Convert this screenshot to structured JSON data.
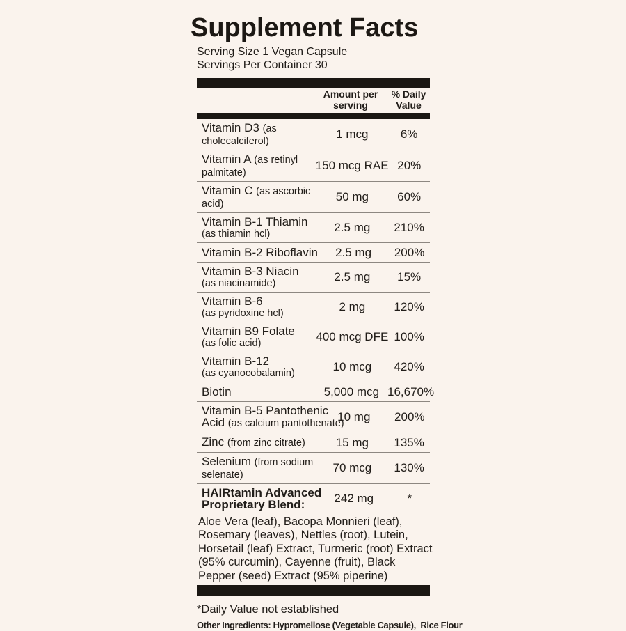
{
  "label": {
    "title": "Supplement Facts",
    "serving_size": "Serving Size 1 Vegan Capsule",
    "servings_per_container": "Servings Per Container 30",
    "header": {
      "amount": "Amount per serving",
      "daily_value": "% Daily Value"
    },
    "rows": [
      {
        "lines": [
          [
            {
              "t": "Vitamin D3 "
            },
            {
              "t": "(as",
              "sm": true
            }
          ],
          [
            {
              "t": "cholecalciferol)",
              "sm": true
            }
          ]
        ],
        "amount": "1 mcg",
        "dv": "6%"
      },
      {
        "lines": [
          [
            {
              "t": "Vitamin A "
            },
            {
              "t": "(as retinyl",
              "sm": true
            }
          ],
          [
            {
              "t": "palmitate)",
              "sm": true
            }
          ]
        ],
        "amount": "150 mcg RAE",
        "dv": "20%"
      },
      {
        "lines": [
          [
            {
              "t": "Vitamin C "
            },
            {
              "t": "(as ascorbic",
              "sm": true
            }
          ],
          [
            {
              "t": "acid)",
              "sm": true
            }
          ]
        ],
        "amount": "50 mg",
        "dv": "60%"
      },
      {
        "lines": [
          [
            {
              "t": "Vitamin B-1 Thiamin"
            }
          ],
          [
            {
              "t": "(as thiamin hcl)",
              "sm": true
            }
          ]
        ],
        "amount": "2.5 mg",
        "dv": "210%"
      },
      {
        "lines": [
          [
            {
              "t": "Vitamin B-2 Riboflavin"
            }
          ]
        ],
        "amount": "2.5 mg",
        "dv": "200%"
      },
      {
        "lines": [
          [
            {
              "t": "Vitamin B-3 Niacin"
            }
          ],
          [
            {
              "t": "(as niacinamide)",
              "sm": true
            }
          ]
        ],
        "amount": "2.5 mg",
        "dv": "15%"
      },
      {
        "lines": [
          [
            {
              "t": "Vitamin B-6"
            }
          ],
          [
            {
              "t": "(as pyridoxine hcl)",
              "sm": true
            }
          ]
        ],
        "amount": "2 mg",
        "dv": "120%"
      },
      {
        "lines": [
          [
            {
              "t": "Vitamin B9 Folate"
            }
          ],
          [
            {
              "t": "(as folic acid)",
              "sm": true
            }
          ]
        ],
        "amount": "400 mcg DFE",
        "dv": "100%"
      },
      {
        "lines": [
          [
            {
              "t": "Vitamin B-12"
            }
          ],
          [
            {
              "t": "(as cyanocobalamin)",
              "sm": true
            }
          ]
        ],
        "amount": "10 mcg",
        "dv": "420%"
      },
      {
        "lines": [
          [
            {
              "t": "Biotin"
            }
          ]
        ],
        "amount": "5,000 mcg",
        "dv": "16,670%"
      },
      {
        "lines": [
          [
            {
              "t": "Vitamin B-5 Pantothenic"
            }
          ],
          [
            {
              "t": "Acid "
            },
            {
              "t": "(as calcium pantothenate)",
              "sm": true
            }
          ]
        ],
        "amount": "10 mg",
        "dv": "200%"
      },
      {
        "lines": [
          [
            {
              "t": "Zinc "
            },
            {
              "t": "(from zinc citrate)",
              "sm": true
            }
          ]
        ],
        "amount": "15 mg",
        "dv": "135%"
      },
      {
        "lines": [
          [
            {
              "t": "Selenium "
            },
            {
              "t": "(from sodium",
              "sm": true
            }
          ],
          [
            {
              "t": "selenate)",
              "sm": true
            }
          ]
        ],
        "amount": "70 mcg",
        "dv": "130%"
      },
      {
        "lines": [
          [
            {
              "t": "HAIRtamin Advanced"
            }
          ],
          [
            {
              "t": "Proprietary Blend:"
            }
          ]
        ],
        "amount": "242 mg",
        "dv": "*",
        "bold": true,
        "no_separator": true
      }
    ],
    "blend_description_lines": [
      "Aloe Vera (leaf), Bacopa Monnieri (leaf),",
      "Rosemary (leaves), Nettles (root), Lutein,",
      "Horsetail (leaf) Extract, Turmeric (root) Extract",
      "(95% curcumin), Cayenne (fruit), Black",
      "Pepper (seed) Extract (95% piperine)"
    ],
    "footnote": "*Daily Value not established",
    "other_ingredients_label": "Other Ingredients",
    "other_ingredients_text": ": Hypromellose (Vegetable Capsule),  Rice Flour",
    "colors": {
      "background": "#faf3ed",
      "text": "#211d19",
      "bar": "#1b1713",
      "separator": "#8d8781"
    }
  }
}
